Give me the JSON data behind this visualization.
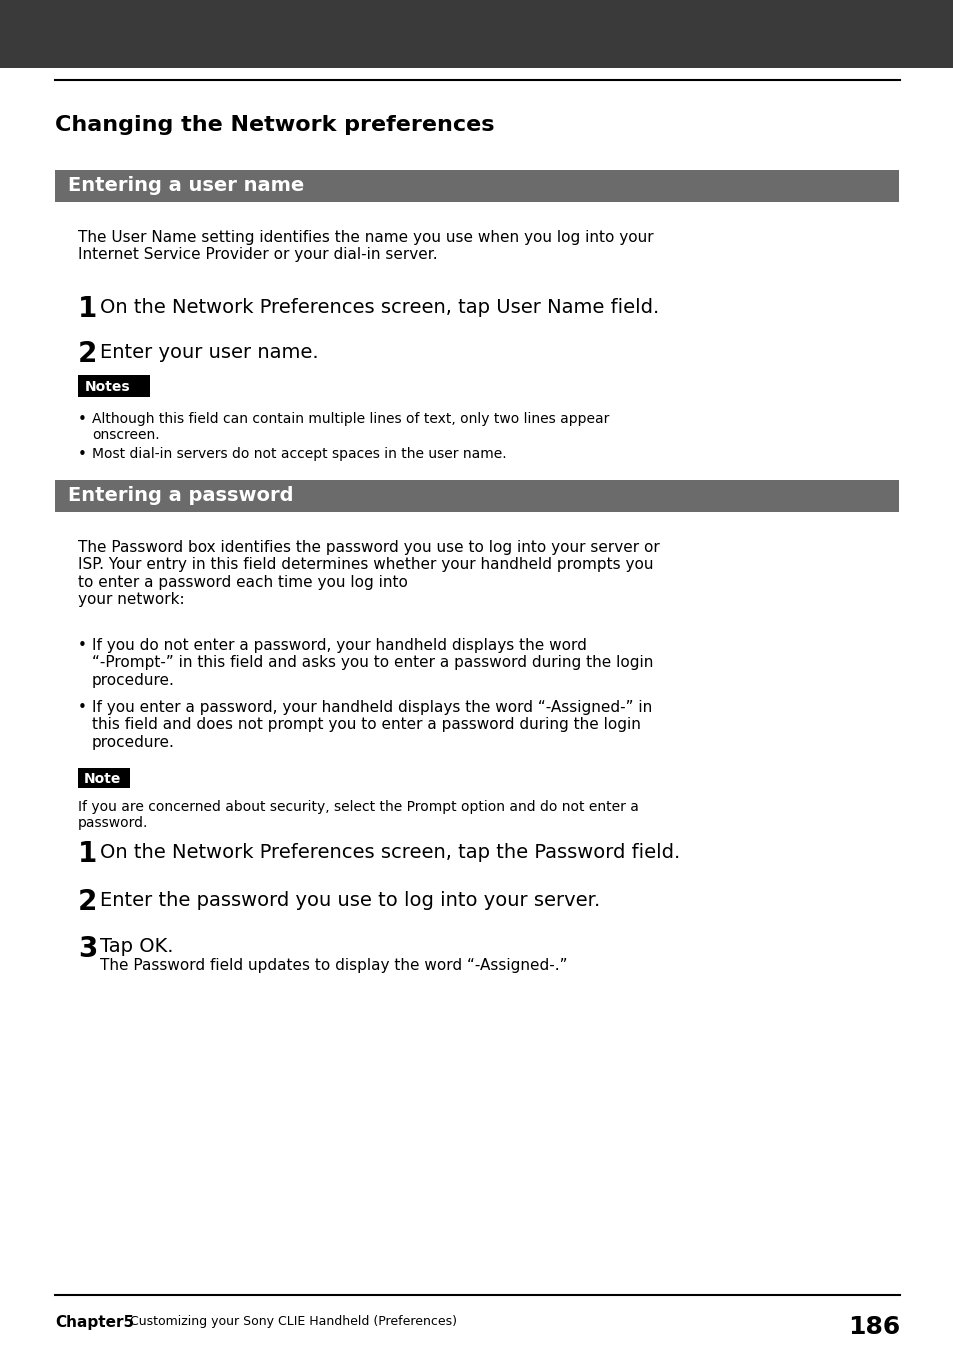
{
  "bg_color": "#ffffff",
  "header_bar_color": "#3a3a3a",
  "section_bar_color": "#6b6b6b",
  "notes_box_color": "#000000",
  "page_title": "Changing the Network preferences",
  "section1_title": "Entering a user name",
  "section1_body": "The User Name setting identifies the name you use when you log into your\nInternet Service Provider or your dial-in server.",
  "section1_step1": "On the Network Preferences screen, tap User Name field.",
  "section1_step2": "Enter your user name.",
  "notes_label": "Notes",
  "notes_bullet1": "Although this field can contain multiple lines of text, only two lines appear\nonscreen.",
  "notes_bullet2": "Most dial-in servers do not accept spaces in the user name.",
  "section2_title": "Entering a password",
  "section2_body": "The Password box identifies the password you use to log into your server or\nISP. Your entry in this field determines whether your handheld prompts you\nto enter a password each time you log into\nyour network:",
  "section2_bullet1": "If you do not enter a password, your handheld displays the word\n“-Prompt-” in this field and asks you to enter a password during the login\nprocedure.",
  "section2_bullet2": "If you enter a password, your handheld displays the word “-Assigned-” in\nthis field and does not prompt you to enter a password during the login\nprocedure.",
  "note_label": "Note",
  "note_body": "If you are concerned about security, select the Prompt option and do not enter a\npassword.",
  "section2_step1": "On the Network Preferences screen, tap the Password field.",
  "section2_step2": "Enter the password you use to log into your server.",
  "section2_step3": "Tap OK.",
  "section2_step3b": "The Password field updates to display the word “-Assigned-.”",
  "footer_chapter": "Chapter5",
  "footer_text": "Customizing your Sony CLIE Handheld (Preferences)",
  "footer_page": "186"
}
